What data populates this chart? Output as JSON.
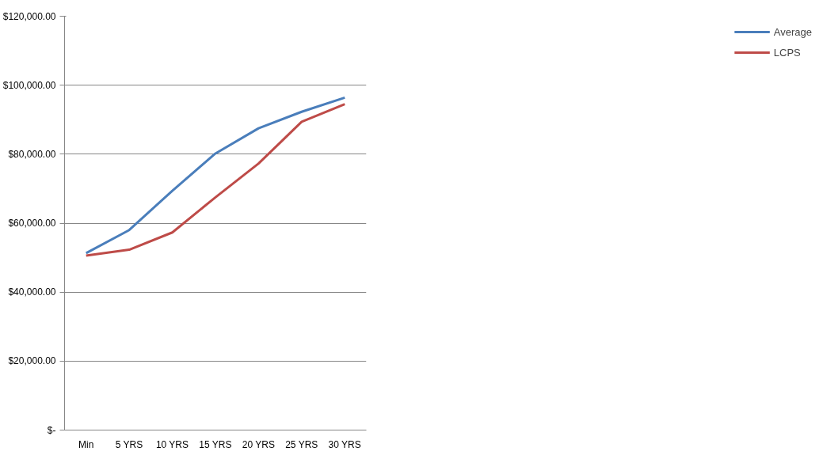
{
  "chart_data": {
    "type": "line",
    "categories": [
      "Min",
      "5 YRS",
      "10 YRS",
      "15 YRS",
      "20 YRS",
      "25 YRS",
      "30 YRS"
    ],
    "series": [
      {
        "name": "Average",
        "color": "#4a7ebb",
        "values": [
          51300,
          58000,
          69400,
          80200,
          87500,
          92300,
          96400
        ]
      },
      {
        "name": "LCPS",
        "color": "#be4b48",
        "values": [
          50600,
          52300,
          57300,
          67500,
          77300,
          89400,
          94500
        ]
      }
    ],
    "ylim": [
      0,
      120000
    ],
    "yticks": [
      {
        "value": 0,
        "label": "$-"
      },
      {
        "value": 20000,
        "label": "$20,000.00"
      },
      {
        "value": 40000,
        "label": "$40,000.00"
      },
      {
        "value": 60000,
        "label": "$60,000.00"
      },
      {
        "value": 80000,
        "label": "$80,000.00"
      },
      {
        "value": 100000,
        "label": "$100,000.00"
      },
      {
        "value": 120000,
        "label": "$120,000.00"
      }
    ],
    "grid": "y",
    "legend": "right",
    "marker": "none",
    "line_style": "solid"
  }
}
